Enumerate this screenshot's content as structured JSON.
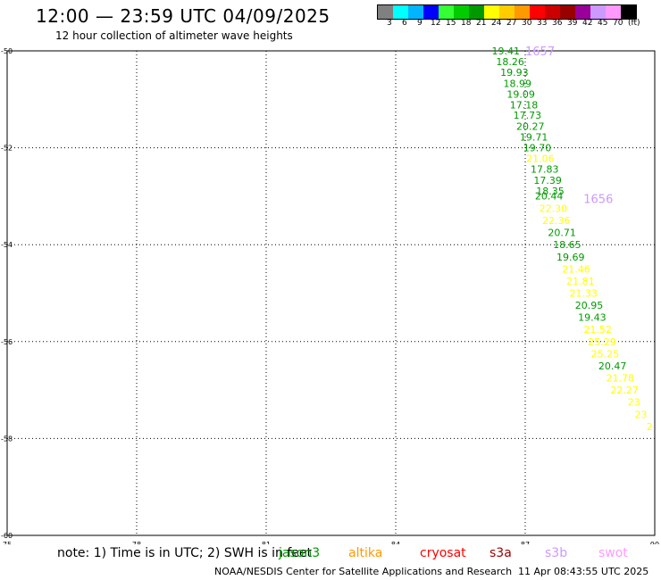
{
  "header": {
    "title": "12:00 — 23:59 UTC 04/09/2025",
    "subtitle": "12 hour collection of altimeter wave heights"
  },
  "legend": {
    "colors": [
      "#808080",
      "#00ffff",
      "#00b4ff",
      "#0000ff",
      "#33ff33",
      "#00cc00",
      "#009900",
      "#ffff00",
      "#ffcc00",
      "#ff9900",
      "#ff0000",
      "#cc0000",
      "#990000",
      "#990099",
      "#cc99ff",
      "#ff99ff",
      "#000000"
    ],
    "labels": [
      "3",
      "6",
      "9",
      "12",
      "15",
      "18",
      "21",
      "24",
      "27",
      "30",
      "33",
      "36",
      "39",
      "42",
      "45",
      "70",
      "(ft)"
    ]
  },
  "footer": {
    "note": "note:  1) Time is in UTC;  2) SWH is in feet",
    "satellites": [
      {
        "name": "jason3",
        "color": "#009900"
      },
      {
        "name": "altika",
        "color": "#ff9900"
      },
      {
        "name": "cryosat",
        "color": "#ff0000"
      },
      {
        "name": "s3a",
        "color": "#990000"
      },
      {
        "name": "s3b",
        "color": "#cc99ff"
      },
      {
        "name": "swot",
        "color": "#ff99ff"
      }
    ],
    "credit": "NOAA/NESDIS Center for Satellite Applications and Research",
    "timestamp": "11 Apr 08:43:55 UTC 2025"
  },
  "chart_data": {
    "type": "scatter",
    "xlim": [
      75,
      90
    ],
    "ylim": [
      -60,
      -50
    ],
    "x_ticks": [
      75,
      78,
      81,
      84,
      87,
      90
    ],
    "y_ticks": [
      -50,
      -52,
      -54,
      -56,
      -58,
      -60
    ],
    "x_tick_labels": [
      "75",
      "78",
      "81",
      "84",
      "87",
      "90"
    ],
    "y_tick_labels": [
      "-50",
      "-52",
      "-54",
      "-56",
      "-58",
      "-60"
    ],
    "grid": true,
    "pass_labels": [
      {
        "text": "1657",
        "x": 87.0,
        "y": -50.0,
        "color": "#cc99ff"
      },
      {
        "text": "1656",
        "x": 88.35,
        "y": -53.05,
        "color": "#cc99ff"
      }
    ],
    "points": [
      {
        "x": 86.55,
        "y": -50.0,
        "value": "19.41",
        "color": "#009900"
      },
      {
        "x": 86.65,
        "y": -50.22,
        "value": "18.26",
        "color": "#009900"
      },
      {
        "x": 86.75,
        "y": -50.44,
        "value": "19.93",
        "color": "#009900"
      },
      {
        "x": 86.82,
        "y": -50.67,
        "value": "18.99",
        "color": "#009900"
      },
      {
        "x": 86.9,
        "y": -50.89,
        "value": "19.09",
        "color": "#009900"
      },
      {
        "x": 86.97,
        "y": -51.11,
        "value": "17.18",
        "color": "#009900"
      },
      {
        "x": 87.05,
        "y": -51.33,
        "value": "17.73",
        "color": "#009900"
      },
      {
        "x": 87.12,
        "y": -51.56,
        "value": "20.27",
        "color": "#009900"
      },
      {
        "x": 87.2,
        "y": -51.78,
        "value": "19.71",
        "color": "#009900"
      },
      {
        "x": 87.28,
        "y": -52.0,
        "value": "19.70",
        "color": "#009900"
      },
      {
        "x": 87.35,
        "y": -52.22,
        "value": "21.06",
        "color": "#ffff00"
      },
      {
        "x": 87.45,
        "y": -52.44,
        "value": "17.83",
        "color": "#009900"
      },
      {
        "x": 87.52,
        "y": -52.67,
        "value": "17.39",
        "color": "#009900"
      },
      {
        "x": 87.58,
        "y": -52.89,
        "value": "18.35",
        "color": "#009900"
      },
      {
        "x": 87.55,
        "y": -52.99,
        "value": "20.44",
        "color": "#009900"
      },
      {
        "x": 87.65,
        "y": -53.25,
        "value": "22.30",
        "color": "#ffff00"
      },
      {
        "x": 87.72,
        "y": -53.5,
        "value": "22.36",
        "color": "#ffff00"
      },
      {
        "x": 87.85,
        "y": -53.75,
        "value": "20.71",
        "color": "#009900"
      },
      {
        "x": 87.97,
        "y": -54.0,
        "value": "18.65",
        "color": "#009900"
      },
      {
        "x": 88.05,
        "y": -54.25,
        "value": "19.69",
        "color": "#009900"
      },
      {
        "x": 88.18,
        "y": -54.5,
        "value": "21.46",
        "color": "#ffff00"
      },
      {
        "x": 88.28,
        "y": -54.75,
        "value": "21.81",
        "color": "#ffff00"
      },
      {
        "x": 88.35,
        "y": -55.0,
        "value": "21.33",
        "color": "#ffff00"
      },
      {
        "x": 88.48,
        "y": -55.25,
        "value": "20.95",
        "color": "#009900"
      },
      {
        "x": 88.55,
        "y": -55.5,
        "value": "19.43",
        "color": "#009900"
      },
      {
        "x": 88.68,
        "y": -55.75,
        "value": "21.52",
        "color": "#ffff00"
      },
      {
        "x": 88.78,
        "y": -56.0,
        "value": "25.29",
        "color": "#ffff00"
      },
      {
        "x": 88.85,
        "y": -56.25,
        "value": "25.25",
        "color": "#ffff00"
      },
      {
        "x": 89.02,
        "y": -56.5,
        "value": "20.47",
        "color": "#009900"
      },
      {
        "x": 89.2,
        "y": -56.75,
        "value": "21.78",
        "color": "#ffff00"
      },
      {
        "x": 89.3,
        "y": -57.0,
        "value": "22.27",
        "color": "#ffff00"
      },
      {
        "x": 89.52,
        "y": -57.25,
        "value": "23",
        "color": "#ffff00"
      },
      {
        "x": 89.68,
        "y": -57.5,
        "value": "23",
        "color": "#ffff00"
      },
      {
        "x": 89.88,
        "y": -57.75,
        "value": "2",
        "color": "#ffff00"
      }
    ]
  }
}
